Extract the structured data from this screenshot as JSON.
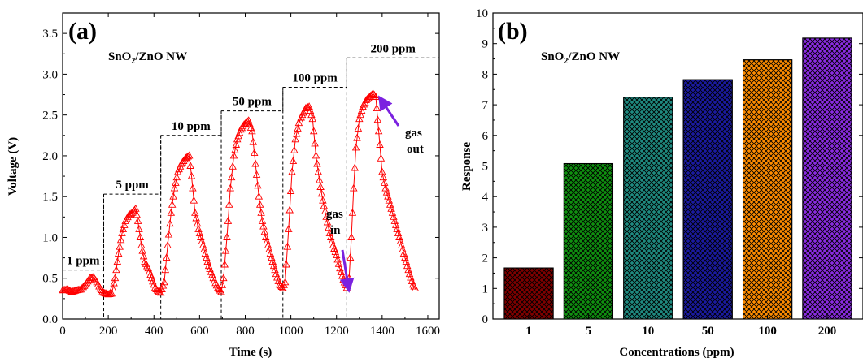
{
  "chart_data": [
    {
      "type": "line",
      "panel_label": "(a)",
      "title_main": "SnO",
      "title_sub": "2",
      "title_rest": "/ZnO NW",
      "xlabel": "Time (s)",
      "ylabel": "Voltage (V)",
      "xlim": [
        0,
        1650
      ],
      "ylim": [
        0,
        3.75
      ],
      "xticks": [
        0,
        200,
        400,
        600,
        800,
        1000,
        1200,
        1400,
        1600
      ],
      "yticks": [
        0.0,
        0.5,
        1.0,
        1.5,
        2.0,
        2.5,
        3.0,
        3.5
      ],
      "xtick_labels": [
        "0",
        "200",
        "400",
        "600",
        "800",
        "1000",
        "1200",
        "1400",
        "1600"
      ],
      "ytick_labels": [
        "0.0",
        "0.5",
        "1.0",
        "1.5",
        "2.0",
        "2.5",
        "3.0",
        "3.5"
      ],
      "color": "#ff0000",
      "marker": "open-triangle",
      "series": [
        {
          "values": [
            [
              0,
              0.35
            ],
            [
              20,
              0.36
            ],
            [
              40,
              0.33
            ],
            [
              60,
              0.35
            ],
            [
              80,
              0.36
            ],
            [
              100,
              0.42
            ],
            [
              120,
              0.5
            ],
            [
              135,
              0.51
            ],
            [
              150,
              0.45
            ],
            [
              165,
              0.37
            ],
            [
              180,
              0.32
            ],
            [
              200,
              0.3
            ],
            [
              215,
              0.31
            ],
            [
              230,
              0.5
            ],
            [
              245,
              0.8
            ],
            [
              260,
              1.05
            ],
            [
              275,
              1.2
            ],
            [
              290,
              1.27
            ],
            [
              305,
              1.3
            ],
            [
              320,
              1.35
            ],
            [
              330,
              1.2
            ],
            [
              345,
              0.9
            ],
            [
              360,
              0.7
            ],
            [
              375,
              0.62
            ],
            [
              390,
              0.5
            ],
            [
              405,
              0.38
            ],
            [
              420,
              0.33
            ],
            [
              430,
              0.32
            ],
            [
              445,
              0.45
            ],
            [
              460,
              0.9
            ],
            [
              475,
              1.3
            ],
            [
              490,
              1.6
            ],
            [
              505,
              1.8
            ],
            [
              520,
              1.9
            ],
            [
              540,
              1.97
            ],
            [
              555,
              2.0
            ],
            [
              565,
              1.75
            ],
            [
              580,
              1.3
            ],
            [
              595,
              1.1
            ],
            [
              610,
              0.95
            ],
            [
              625,
              0.8
            ],
            [
              640,
              0.65
            ],
            [
              660,
              0.5
            ],
            [
              680,
              0.38
            ],
            [
              695,
              0.33
            ],
            [
              705,
              0.5
            ],
            [
              720,
              1.0
            ],
            [
              735,
              1.6
            ],
            [
              750,
              2.0
            ],
            [
              765,
              2.2
            ],
            [
              780,
              2.32
            ],
            [
              795,
              2.38
            ],
            [
              815,
              2.43
            ],
            [
              830,
              2.3
            ],
            [
              845,
              1.9
            ],
            [
              860,
              1.5
            ],
            [
              875,
              1.2
            ],
            [
              890,
              1.0
            ],
            [
              905,
              0.85
            ],
            [
              920,
              0.7
            ],
            [
              935,
              0.55
            ],
            [
              950,
              0.42
            ],
            [
              965,
              0.38
            ],
            [
              975,
              0.45
            ],
            [
              990,
              1.1
            ],
            [
              1005,
              1.8
            ],
            [
              1020,
              2.2
            ],
            [
              1035,
              2.4
            ],
            [
              1050,
              2.5
            ],
            [
              1065,
              2.58
            ],
            [
              1080,
              2.6
            ],
            [
              1095,
              2.45
            ],
            [
              1110,
              2.0
            ],
            [
              1125,
              1.7
            ],
            [
              1140,
              1.45
            ],
            [
              1155,
              1.25
            ],
            [
              1170,
              1.05
            ],
            [
              1185,
              0.9
            ],
            [
              1200,
              0.78
            ],
            [
              1215,
              0.62
            ],
            [
              1230,
              0.48
            ],
            [
              1245,
              0.38
            ],
            [
              1255,
              0.5
            ],
            [
              1265,
              1.0
            ],
            [
              1275,
              1.6
            ],
            [
              1285,
              2.1
            ],
            [
              1300,
              2.45
            ],
            [
              1315,
              2.6
            ],
            [
              1330,
              2.68
            ],
            [
              1345,
              2.72
            ],
            [
              1360,
              2.76
            ],
            [
              1372,
              2.72
            ],
            [
              1385,
              2.3
            ],
            [
              1400,
              1.8
            ],
            [
              1415,
              1.6
            ],
            [
              1430,
              1.45
            ],
            [
              1445,
              1.3
            ],
            [
              1460,
              1.15
            ],
            [
              1475,
              1.0
            ],
            [
              1490,
              0.85
            ],
            [
              1505,
              0.7
            ],
            [
              1520,
              0.55
            ],
            [
              1535,
              0.42
            ],
            [
              1550,
              0.35
            ]
          ]
        }
      ],
      "step_levels": [
        {
          "label": "1 ppm",
          "x0": 0,
          "x1": 180,
          "level": 0.6
        },
        {
          "label": "5 ppm",
          "x0": 180,
          "x1": 430,
          "level": 1.53
        },
        {
          "label": "10 ppm",
          "x0": 430,
          "x1": 695,
          "level": 2.25
        },
        {
          "label": "50 ppm",
          "x0": 695,
          "x1": 965,
          "level": 2.55
        },
        {
          "label": "100 ppm",
          "x0": 965,
          "x1": 1245,
          "level": 2.84
        },
        {
          "label": "200 ppm",
          "x0": 1245,
          "x1": 1650,
          "level": 3.2
        }
      ],
      "annotations": [
        {
          "lines": [
            "gas",
            "in"
          ],
          "color": "#7b22e0"
        },
        {
          "lines": [
            "gas",
            "out"
          ],
          "color": "#7b22e0"
        }
      ]
    },
    {
      "type": "bar",
      "panel_label": "(b)",
      "title_main": "SnO",
      "title_sub": "2",
      "title_rest": "/ZnO NW",
      "xlabel": "Concentrations (ppm)",
      "ylabel": "Response",
      "ylim": [
        0,
        10
      ],
      "yticks": [
        0,
        1,
        2,
        3,
        4,
        5,
        6,
        7,
        8,
        9,
        10
      ],
      "ytick_labels": [
        "0",
        "1",
        "2",
        "3",
        "4",
        "5",
        "6",
        "7",
        "8",
        "9",
        "10"
      ],
      "categories": [
        "1",
        "5",
        "10",
        "50",
        "100",
        "200"
      ],
      "values": [
        1.67,
        5.08,
        7.25,
        7.82,
        8.47,
        9.18
      ],
      "colors": [
        "#800000",
        "#109010",
        "#1f8a80",
        "#1a1aa0",
        "#ff8c00",
        "#8a2be2"
      ],
      "pattern": "crosshatch"
    }
  ]
}
